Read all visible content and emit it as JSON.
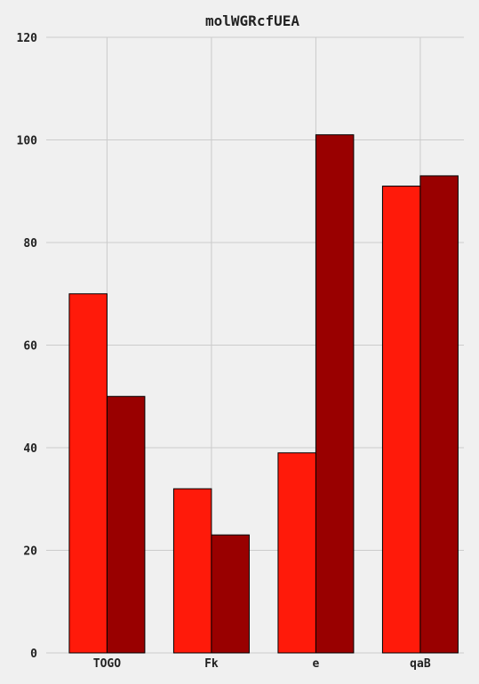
{
  "chart_data": {
    "type": "bar",
    "title": "molWGRcfUEA",
    "xlabel": "",
    "ylabel": "",
    "categories": [
      "TOGO",
      "Fk",
      "e",
      "qaB"
    ],
    "series": [
      {
        "values": [
          70,
          32,
          39,
          91
        ],
        "color": "#ff1a0a"
      },
      {
        "values": [
          50,
          23,
          101,
          93
        ],
        "color": "#990000"
      }
    ],
    "ylim": [
      0,
      120
    ],
    "yticks": [
      0,
      20,
      40,
      60,
      80,
      100,
      120
    ],
    "grid": true,
    "legend": "none",
    "background": "#f0f0f0"
  }
}
